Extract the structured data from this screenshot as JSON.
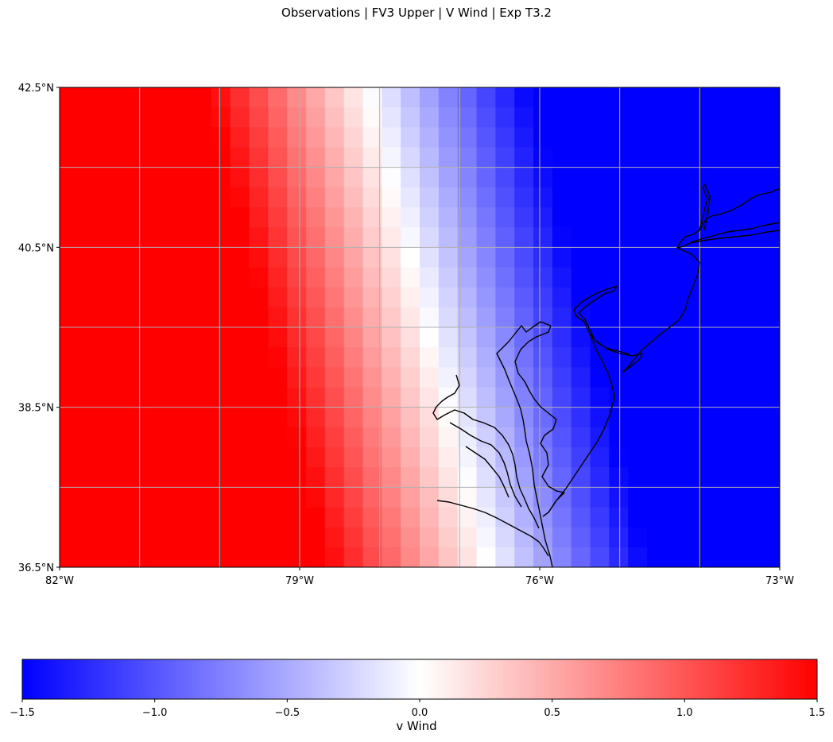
{
  "title": "Observations | FV3 Upper | V Wind | Exp T3.2",
  "map": {
    "extent": {
      "lon": [
        -82,
        -73
      ],
      "lat": [
        36.5,
        42.5
      ]
    },
    "x_ticks": [
      {
        "value": -82,
        "label": "82°W"
      },
      {
        "value": -79,
        "label": "79°W"
      },
      {
        "value": -76,
        "label": "76°W"
      },
      {
        "value": -73,
        "label": "73°W"
      }
    ],
    "y_ticks": [
      {
        "value": 36.5,
        "label": "36.5°N"
      },
      {
        "value": 38.5,
        "label": "38.5°N"
      },
      {
        "value": 40.5,
        "label": "40.5°N"
      },
      {
        "value": 42.5,
        "label": "42.5°N"
      }
    ],
    "gridlines": true,
    "coastlines": true,
    "field": "v Wind",
    "field_description": "v wind decreasing west to east: saturated red (+1.5) west of about 79.5°W, near zero around 77.4°W, saturated blue (-1.5) east of about 75.5°W"
  },
  "colorbar": {
    "label": "v Wind",
    "range": [
      -1.5,
      1.5
    ],
    "colormap": "bwr",
    "colors": {
      "low": "#0000ff",
      "mid": "#ffffff",
      "high": "#ff0000"
    },
    "ticks": [
      {
        "value": -1.5,
        "label": "−1.5"
      },
      {
        "value": -1.0,
        "label": "−1.0"
      },
      {
        "value": -0.5,
        "label": "−0.5"
      },
      {
        "value": 0.0,
        "label": "0.0"
      },
      {
        "value": 0.5,
        "label": "0.5"
      },
      {
        "value": 1.0,
        "label": "1.0"
      },
      {
        "value": 1.5,
        "label": "1.5"
      }
    ]
  }
}
